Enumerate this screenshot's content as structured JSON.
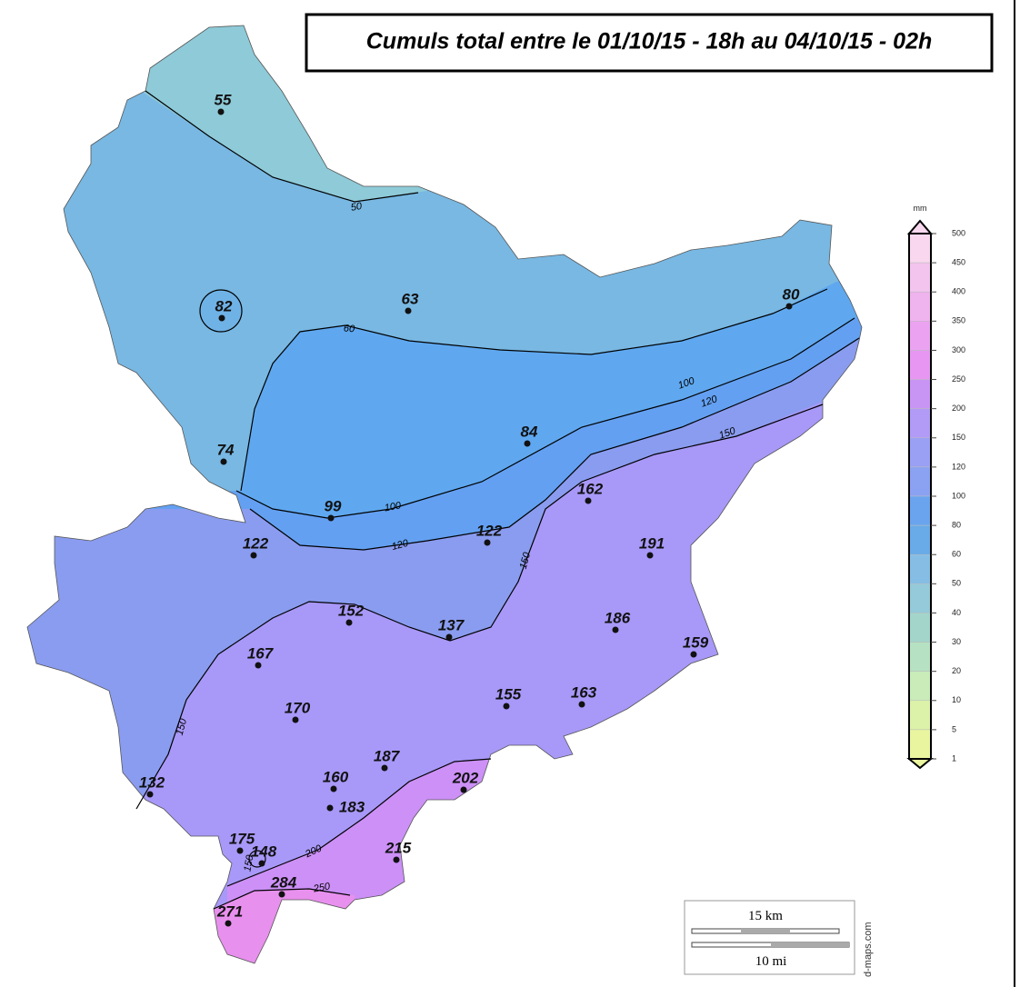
{
  "title": "Cumuls total entre le 01/10/15 - 18h au 04/10/15 - 02h",
  "stations": [
    55,
    82,
    63,
    80,
    74,
    84,
    99,
    122,
    162,
    122,
    191,
    152,
    137,
    186,
    159,
    167,
    170,
    155,
    163,
    132,
    187,
    202,
    160,
    183,
    175,
    148,
    215,
    284,
    271
  ],
  "contour_labels": [
    50,
    60,
    100,
    120,
    150,
    100,
    120,
    150,
    150,
    200,
    250,
    150
  ],
  "legend": {
    "unit": "mm",
    "ticks": [
      500,
      450,
      400,
      350,
      300,
      250,
      200,
      150,
      120,
      100,
      80,
      60,
      50,
      40,
      30,
      20,
      10,
      5,
      1
    ],
    "colors": [
      "#f9d8ef",
      "#f3c4ee",
      "#efb3ee",
      "#eba3f1",
      "#e797f2",
      "#c995f5",
      "#b29bf6",
      "#9aa0f4",
      "#8ba2f2",
      "#6aa4ee",
      "#69aae8",
      "#86bde4",
      "#94cad9",
      "#a3d5cb",
      "#b6e2c3",
      "#c9ecb9",
      "#dcf2a8",
      "#eaf59f"
    ]
  },
  "scale": {
    "km": "15 km",
    "mi": "10 mi"
  },
  "credit": "d-maps.com"
}
